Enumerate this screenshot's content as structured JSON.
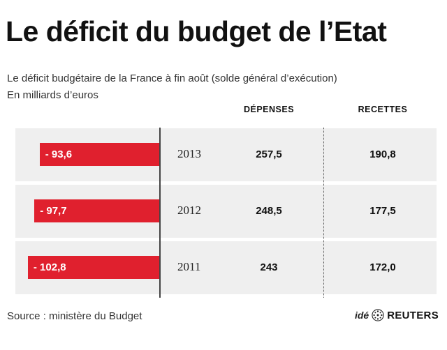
{
  "header": {
    "title": "Le déficit du budget de l’Etat",
    "subtitle": "Le déficit budgétaire de la France à fin août (solde général d’exécution)",
    "unit": "En milliards d’euros"
  },
  "table": {
    "col_depenses": "DÉPENSES",
    "col_recettes": "RECETTES"
  },
  "chart_data": {
    "type": "bar",
    "title": "Le déficit du budget de l’Etat",
    "subtitle": "Le déficit budgétaire de la France à fin août (solde général d’exécution)",
    "ylabel": "En milliards d’euros",
    "orientation": "horizontal",
    "categories": [
      "2013",
      "2012",
      "2011"
    ],
    "values": [
      -93.6,
      -97.7,
      -102.8
    ],
    "value_labels": [
      "- 93,6",
      "- 97,7",
      "- 102,8"
    ],
    "depenses": [
      "257,5",
      "248,5",
      "243"
    ],
    "recettes": [
      "190,8",
      "177,5",
      "172,0"
    ],
    "bar_color": "#e0202e"
  },
  "footer": {
    "source": "Source : ministère du Budget",
    "credit_ide": "idé",
    "credit_reuters": "REUTERS"
  }
}
